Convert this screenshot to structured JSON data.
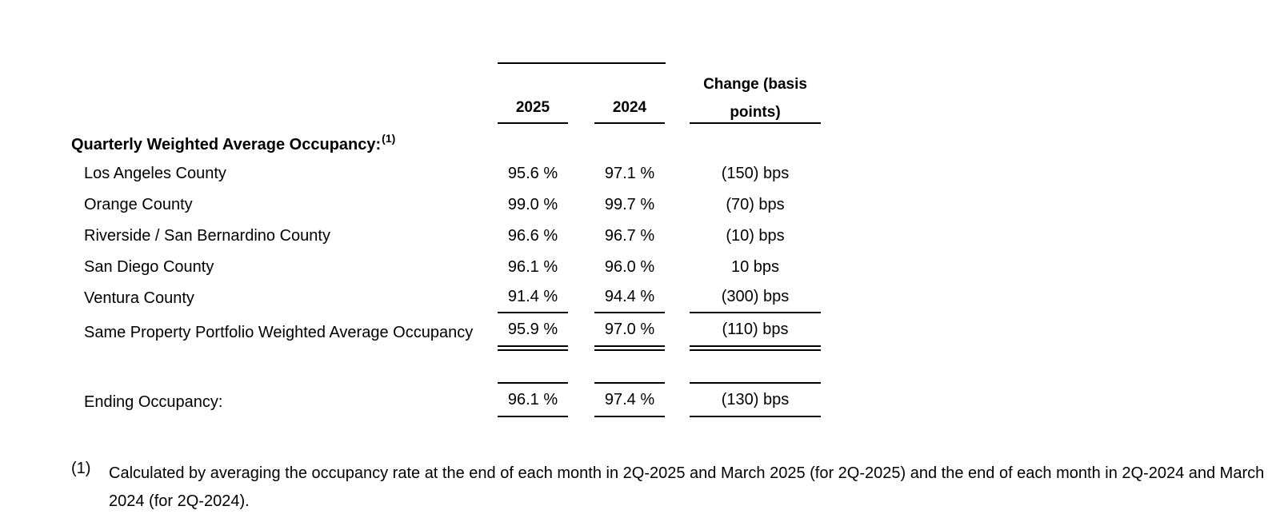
{
  "columns": {
    "col1": "2025",
    "col2": "2024",
    "col3_line1": "Change (basis",
    "col3_line2": "points)"
  },
  "section": {
    "title": "Quarterly Weighted Average Occupancy:",
    "footnote_ref": "(1)"
  },
  "rows": [
    {
      "label": "Los Angeles County",
      "v2025": "95.6 %",
      "v2024": "97.1 %",
      "change": "(150) bps"
    },
    {
      "label": "Orange County",
      "v2025": "99.0 %",
      "v2024": "99.7 %",
      "change": "(70) bps"
    },
    {
      "label": "Riverside / San Bernardino County",
      "v2025": "96.6 %",
      "v2024": "96.7 %",
      "change": "(10) bps"
    },
    {
      "label": "San Diego County",
      "v2025": "96.1 %",
      "v2024": "96.0 %",
      "change": "10 bps"
    },
    {
      "label": "Ventura County",
      "v2025": "91.4 %",
      "v2024": "94.4 %",
      "change": "(300) bps"
    }
  ],
  "total": {
    "label": "Same Property Portfolio Weighted Average Occupancy",
    "v2025": "95.9 %",
    "v2024": "97.0 %",
    "change": "(110) bps"
  },
  "ending": {
    "label": "Ending Occupancy:",
    "v2025": "96.1 %",
    "v2024": "97.4 %",
    "change": "(130) bps"
  },
  "footnote": {
    "marker": "(1)",
    "text": "Calculated by averaging the occupancy rate at the end of each month in 2Q-2025 and March 2025 (for 2Q-2025) and the end of each month in 2Q-2024 and March 2024 (for 2Q-2024)."
  }
}
